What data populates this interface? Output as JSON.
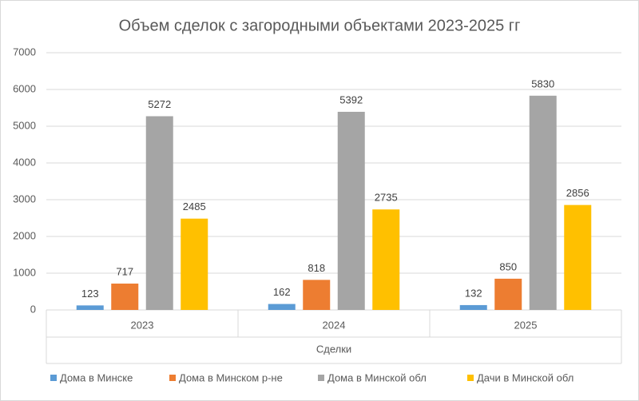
{
  "chart_data": {
    "type": "bar",
    "title": "Объем сделок с загородными объектами 2023-2025 гг",
    "x_label": "Сделки",
    "categories": [
      "2023",
      "2024",
      "2025"
    ],
    "series": [
      {
        "name": "Дома в Минске",
        "color": "#5b9bd5",
        "values": [
          123,
          162,
          132
        ]
      },
      {
        "name": "Дома в Минском р-не",
        "color": "#ed7d31",
        "values": [
          717,
          818,
          850
        ]
      },
      {
        "name": "Дома в Минской обл",
        "color": "#a5a5a5",
        "values": [
          5272,
          5392,
          5830
        ]
      },
      {
        "name": "Дачи в Минской обл",
        "color": "#ffc000",
        "values": [
          2485,
          2735,
          2856
        ]
      }
    ],
    "ylim": [
      0,
      7000
    ],
    "yticks": [
      0,
      1000,
      2000,
      3000,
      4000,
      5000,
      6000,
      7000
    ],
    "grid": true,
    "legend": "bottom",
    "data_labels": true
  }
}
